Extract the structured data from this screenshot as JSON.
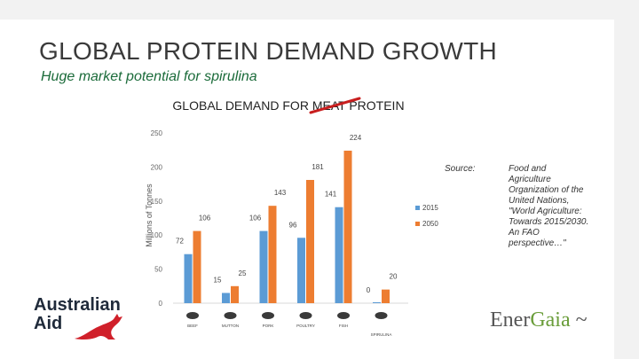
{
  "slide": {
    "title": "GLOBAL PROTEIN DEMAND GROWTH",
    "subtitle": "Huge market potential for spirulina"
  },
  "source": {
    "label": "Source:",
    "text": "Food and Agriculture Organization of the United Nations, \"World Agriculture: Towards 2015/2030. An FAO perspective…\""
  },
  "logos": {
    "left_line1": "Australian",
    "left_line2": "Aid",
    "right_text_a": "Ener",
    "right_text_b": "Gaia",
    "right_text_c": " ~"
  },
  "chart_data": {
    "type": "bar",
    "title_before": "GLOBAL DEMAND FOR ",
    "title_struck": "MEAT",
    "title_after": " PROTEIN",
    "ylabel": "Millions of Tonnes",
    "ylim": [
      0,
      250
    ],
    "yticks": [
      0,
      50,
      100,
      150,
      200,
      250
    ],
    "grid": false,
    "legend_position": "right",
    "categories": [
      "BEEF",
      "MUTTON",
      "PORK",
      "POULTRY",
      "FISH",
      "SPIRULINA"
    ],
    "series": [
      {
        "name": "2015",
        "color": "#5b9bd5",
        "values": [
          72,
          15,
          106,
          96,
          141,
          0
        ]
      },
      {
        "name": "2050",
        "color": "#ed7d31",
        "values": [
          106,
          25,
          143,
          181,
          224,
          20
        ]
      }
    ]
  }
}
